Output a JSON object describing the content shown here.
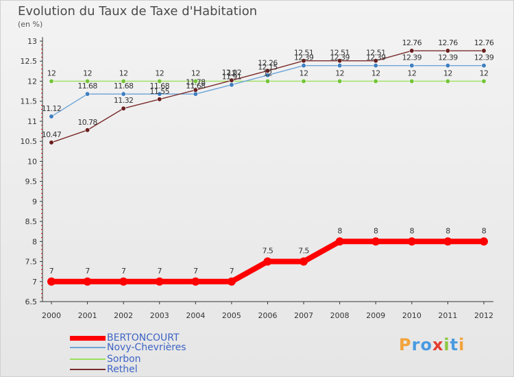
{
  "title": "Evolution du Taux de Taxe d'Habitation",
  "unit_label": "(en %)",
  "brand": {
    "text": "Proxiti",
    "letters": [
      {
        "ch": "P",
        "color": "#f2a33a"
      },
      {
        "ch": "r",
        "color": "#4a9be0"
      },
      {
        "ch": "o",
        "color": "#4a9be0"
      },
      {
        "ch": "x",
        "color": "#e43c2f"
      },
      {
        "ch": "i",
        "color": "#8cc63f"
      },
      {
        "ch": "t",
        "color": "#4a9be0"
      },
      {
        "ch": "i",
        "color": "#f2a33a"
      }
    ]
  },
  "chart_data": {
    "type": "line",
    "title": "Evolution du Taux de Taxe d'Habitation",
    "ylabel": "(en %)",
    "xlabel": "",
    "x": [
      "2000",
      "2001",
      "2002",
      "2003",
      "2004",
      "2005",
      "2006",
      "2007",
      "2008",
      "2009",
      "2010",
      "2011",
      "2012"
    ],
    "ylim": [
      6.5,
      13
    ],
    "yticks": [
      "6.5",
      "7",
      "7.5",
      "8",
      "8.5",
      "9",
      "9.5",
      "10",
      "10.5",
      "11",
      "11.5",
      "12",
      "12.5",
      "13"
    ],
    "grid": false,
    "legend_position": "bottom-left",
    "series": [
      {
        "name": "BERTONCOURT",
        "color": "#ff0000",
        "emphasis": true,
        "values": [
          7,
          7,
          7,
          7,
          7,
          7,
          7.5,
          7.5,
          8,
          8,
          8,
          8,
          8
        ],
        "labels": [
          "7",
          "7",
          "7",
          "7",
          "7",
          "7",
          "7.5",
          "7.5",
          "8",
          "8",
          "8",
          "8",
          "8"
        ]
      },
      {
        "name": "Novy-Chevrières",
        "color": "#6aa3d8",
        "marker": "#3f7fc0",
        "values": [
          11.12,
          11.68,
          11.68,
          11.68,
          11.68,
          11.91,
          12.15,
          12.39,
          12.39,
          12.39,
          12.39,
          12.39,
          12.39
        ],
        "labels": [
          "11.12",
          "11.68",
          "11.68",
          "11.68",
          "11.68",
          "11.91",
          "12.15",
          "12.39",
          "12.39",
          "12.39",
          "12.39",
          "12.39",
          "12.39"
        ]
      },
      {
        "name": "Sorbon",
        "color": "#9ae05a",
        "marker": "#74c438",
        "values": [
          12,
          12,
          12,
          12,
          12,
          12,
          12,
          12,
          12,
          12,
          12,
          12,
          12
        ],
        "labels": [
          "12",
          "12",
          "12",
          "12",
          "12",
          "12",
          "12",
          "12",
          "12",
          "12",
          "12",
          "12",
          "12"
        ]
      },
      {
        "name": "Rethel",
        "color": "#7a2a2a",
        "marker": "#6a1f1f",
        "values": [
          10.47,
          10.78,
          11.32,
          11.55,
          11.78,
          12.02,
          12.26,
          12.51,
          12.51,
          12.51,
          12.76,
          12.76,
          12.76
        ],
        "labels": [
          "10.47",
          "10.78",
          "11.32",
          "11.55",
          "11.78",
          "12.02",
          "12.26",
          "12.51",
          "12.51",
          "12.51",
          "12.76",
          "12.76",
          "12.76"
        ]
      }
    ]
  }
}
